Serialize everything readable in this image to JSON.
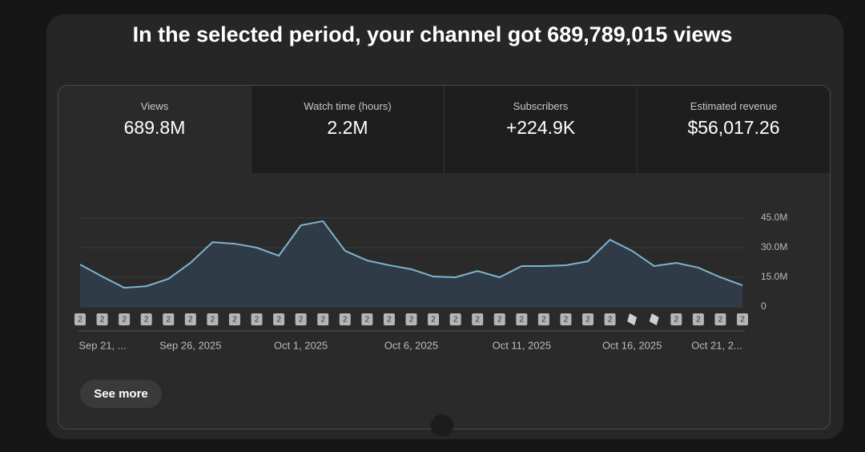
{
  "header": {
    "title": "In the selected period, your channel got 689,789,015 views"
  },
  "metrics": [
    {
      "label": "Views",
      "value": "689.8M"
    },
    {
      "label": "Watch time (hours)",
      "value": "2.2M"
    },
    {
      "label": "Subscribers",
      "value": "+224.9K"
    },
    {
      "label": "Estimated revenue",
      "value": "$56,017.26"
    }
  ],
  "chart_data": {
    "type": "line",
    "categories": [
      "Sep 21, ...",
      null,
      null,
      null,
      null,
      "Sep 26, 2025",
      null,
      null,
      null,
      null,
      "Oct 1, 2025",
      null,
      null,
      null,
      null,
      "Oct 6, 2025",
      null,
      null,
      null,
      null,
      "Oct 11, 2025",
      null,
      null,
      null,
      null,
      "Oct 16, 2025",
      null,
      null,
      null,
      null,
      "Oct 21, 2..."
    ],
    "series": [
      {
        "name": "Views",
        "color": "#7fb3d0",
        "values": [
          21500000,
          15400000,
          9700000,
          10500000,
          14200000,
          22300000,
          32800000,
          32000000,
          30000000,
          25900000,
          41300000,
          43400000,
          28400000,
          23500000,
          21100000,
          19100000,
          15400000,
          15000000,
          18200000,
          15000000,
          20700000,
          20700000,
          21100000,
          23100000,
          34000000,
          28400000,
          20700000,
          22300000,
          19900000,
          15000000,
          10900000
        ]
      }
    ],
    "markers": [
      "2",
      "2",
      "2",
      "2",
      "2",
      "2",
      "2",
      "2",
      "2",
      "2",
      "2",
      "2",
      "2",
      "2",
      "2",
      "2",
      "2",
      "2",
      "2",
      "2",
      "2",
      "2",
      "2",
      "2",
      "2",
      null,
      null,
      "2",
      "2",
      "2",
      "2"
    ],
    "ylim": [
      0,
      45000000
    ],
    "yticks": [
      0,
      {
        "value": 15000000,
        "label": "15.0M"
      },
      {
        "value": 30000000,
        "label": "30.0M"
      },
      {
        "value": 45000000,
        "label": "45.0M"
      }
    ],
    "grid": true
  },
  "button": {
    "label": "See more"
  }
}
